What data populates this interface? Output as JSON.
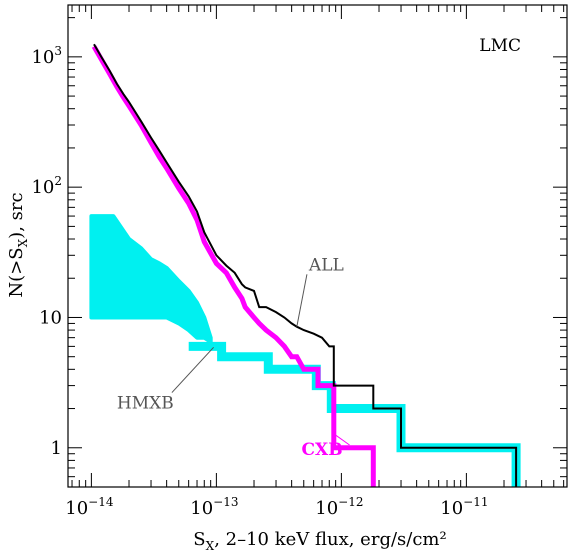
{
  "chart_data": {
    "type": "line",
    "xscale": "log",
    "yscale": "log",
    "xlim": [
      6.5e-15,
      6.5e-11
    ],
    "ylim": [
      0.5,
      2500
    ],
    "xlabel": "S",
    "xlabel_sub": "X",
    "xlabel_rest": ", 2–10 keV flux, erg/s/cm²",
    "ylabel": "N(>S",
    "ylabel_sub": "X",
    "ylabel_rest": "), src",
    "xticks": [
      {
        "base": "10",
        "exp": "−14",
        "value": 1e-14
      },
      {
        "base": "10",
        "exp": "−13",
        "value": 1e-13
      },
      {
        "base": "10",
        "exp": "−12",
        "value": 1e-12
      },
      {
        "base": "10",
        "exp": "−11",
        "value": 1e-11
      }
    ],
    "yticks": [
      {
        "base": "1",
        "exp": "",
        "value": 1
      },
      {
        "base": "10",
        "exp": "",
        "value": 10
      },
      {
        "base": "10",
        "exp": "2",
        "value": 100
      },
      {
        "base": "10",
        "exp": "3",
        "value": 1000
      }
    ],
    "panel_label": "LMC",
    "annotations": [
      {
        "text": "ALL",
        "color": "#555555",
        "x": 5.5e-13,
        "y": 23,
        "target_x": 4.4e-13,
        "target_y": 8.5
      },
      {
        "text": "HMXB",
        "color": "#555555",
        "x": 1.6e-14,
        "y": 2.0,
        "target_x": 9.5e-14,
        "target_y": 5.9
      },
      {
        "text": "CXB",
        "color": "#ff00ff",
        "x": 4.8e-13,
        "y": 0.88,
        "target_x": 8.7e-13,
        "target_y": 1.28
      }
    ],
    "series": [
      {
        "name": "ALL",
        "color": "#000000",
        "width": 2,
        "x": [
          1.05e-14,
          1.2e-14,
          1.4e-14,
          1.6e-14,
          1.8e-14,
          2e-14,
          2.5e-14,
          3e-14,
          3.5e-14,
          4e-14,
          5e-14,
          6e-14,
          7e-14,
          8e-14,
          1e-13,
          1.2e-13,
          1.4e-13,
          1.6e-13,
          1.7e-13,
          2e-13,
          2.2e-13,
          2.5e-13,
          3e-13,
          3.5e-13,
          4e-13,
          4.4e-13,
          5e-13,
          6e-13,
          7e-13,
          8e-13,
          8.7e-13,
          8.7e-13,
          1.8e-12,
          1.8e-12,
          3e-12,
          3e-12,
          2.5e-11,
          2.5e-11
        ],
        "y": [
          1250,
          1000,
          780,
          620,
          520,
          450,
          320,
          240,
          190,
          155,
          110,
          85,
          65,
          45,
          30,
          25,
          22,
          18,
          17,
          16,
          12,
          12,
          11,
          10,
          9,
          8.5,
          8.0,
          7.5,
          7,
          6,
          6,
          3,
          3,
          2,
          2,
          1,
          1,
          0.5
        ]
      },
      {
        "name": "CXB",
        "color": "#ff00ff",
        "width": 5,
        "x": [
          1.05e-14,
          1.2e-14,
          1.4e-14,
          1.6e-14,
          1.8e-14,
          2e-14,
          2.5e-14,
          3e-14,
          3.5e-14,
          4e-14,
          5e-14,
          6e-14,
          7e-14,
          8e-14,
          1e-13,
          1.2e-13,
          1.4e-13,
          1.6e-13,
          1.7e-13,
          2e-13,
          2.2e-13,
          2.5e-13,
          3e-13,
          3.5e-13,
          4e-13,
          4.4e-13,
          5e-13,
          6e-13,
          6.5e-13,
          6.5e-13,
          8.7e-13,
          8.7e-13,
          1.8e-12,
          1.8e-12
        ],
        "y": [
          1200,
          960,
          740,
          590,
          490,
          420,
          300,
          220,
          170,
          140,
          98,
          75,
          56,
          38,
          26,
          22,
          17,
          14,
          12,
          10,
          9,
          8,
          7,
          6,
          5,
          5,
          4,
          4,
          4,
          3,
          3,
          1,
          1,
          0.5
        ]
      },
      {
        "name": "HMXB",
        "color": "#00f0f0",
        "width": 9,
        "x": [
          6e-14,
          1.1e-13,
          1.1e-13,
          2.6e-13,
          2.6e-13,
          4.6e-13,
          4.6e-13,
          6.3e-13,
          6.3e-13,
          8.3e-13,
          8.3e-13,
          3e-12,
          3e-12,
          2.5e-11,
          2.5e-11
        ],
        "y": [
          6,
          6,
          5,
          5,
          4,
          4,
          4,
          4,
          3,
          3,
          2,
          2,
          1,
          1,
          0.5
        ]
      }
    ],
    "bands": [
      {
        "name": "HMXB-band",
        "color": "#00f0f0",
        "x": [
          1e-14,
          1.5e-14,
          2e-14,
          2.5e-14,
          3e-14,
          3.5e-14,
          4e-14,
          5e-14,
          6e-14,
          7e-14,
          8e-14,
          9e-14
        ],
        "upper": [
          60,
          60,
          40,
          34,
          28,
          26,
          24,
          19,
          16,
          13,
          10,
          7
        ],
        "lower": [
          10,
          10,
          10,
          10,
          10,
          10,
          10,
          9,
          8,
          7,
          7,
          6.5
        ]
      }
    ]
  }
}
